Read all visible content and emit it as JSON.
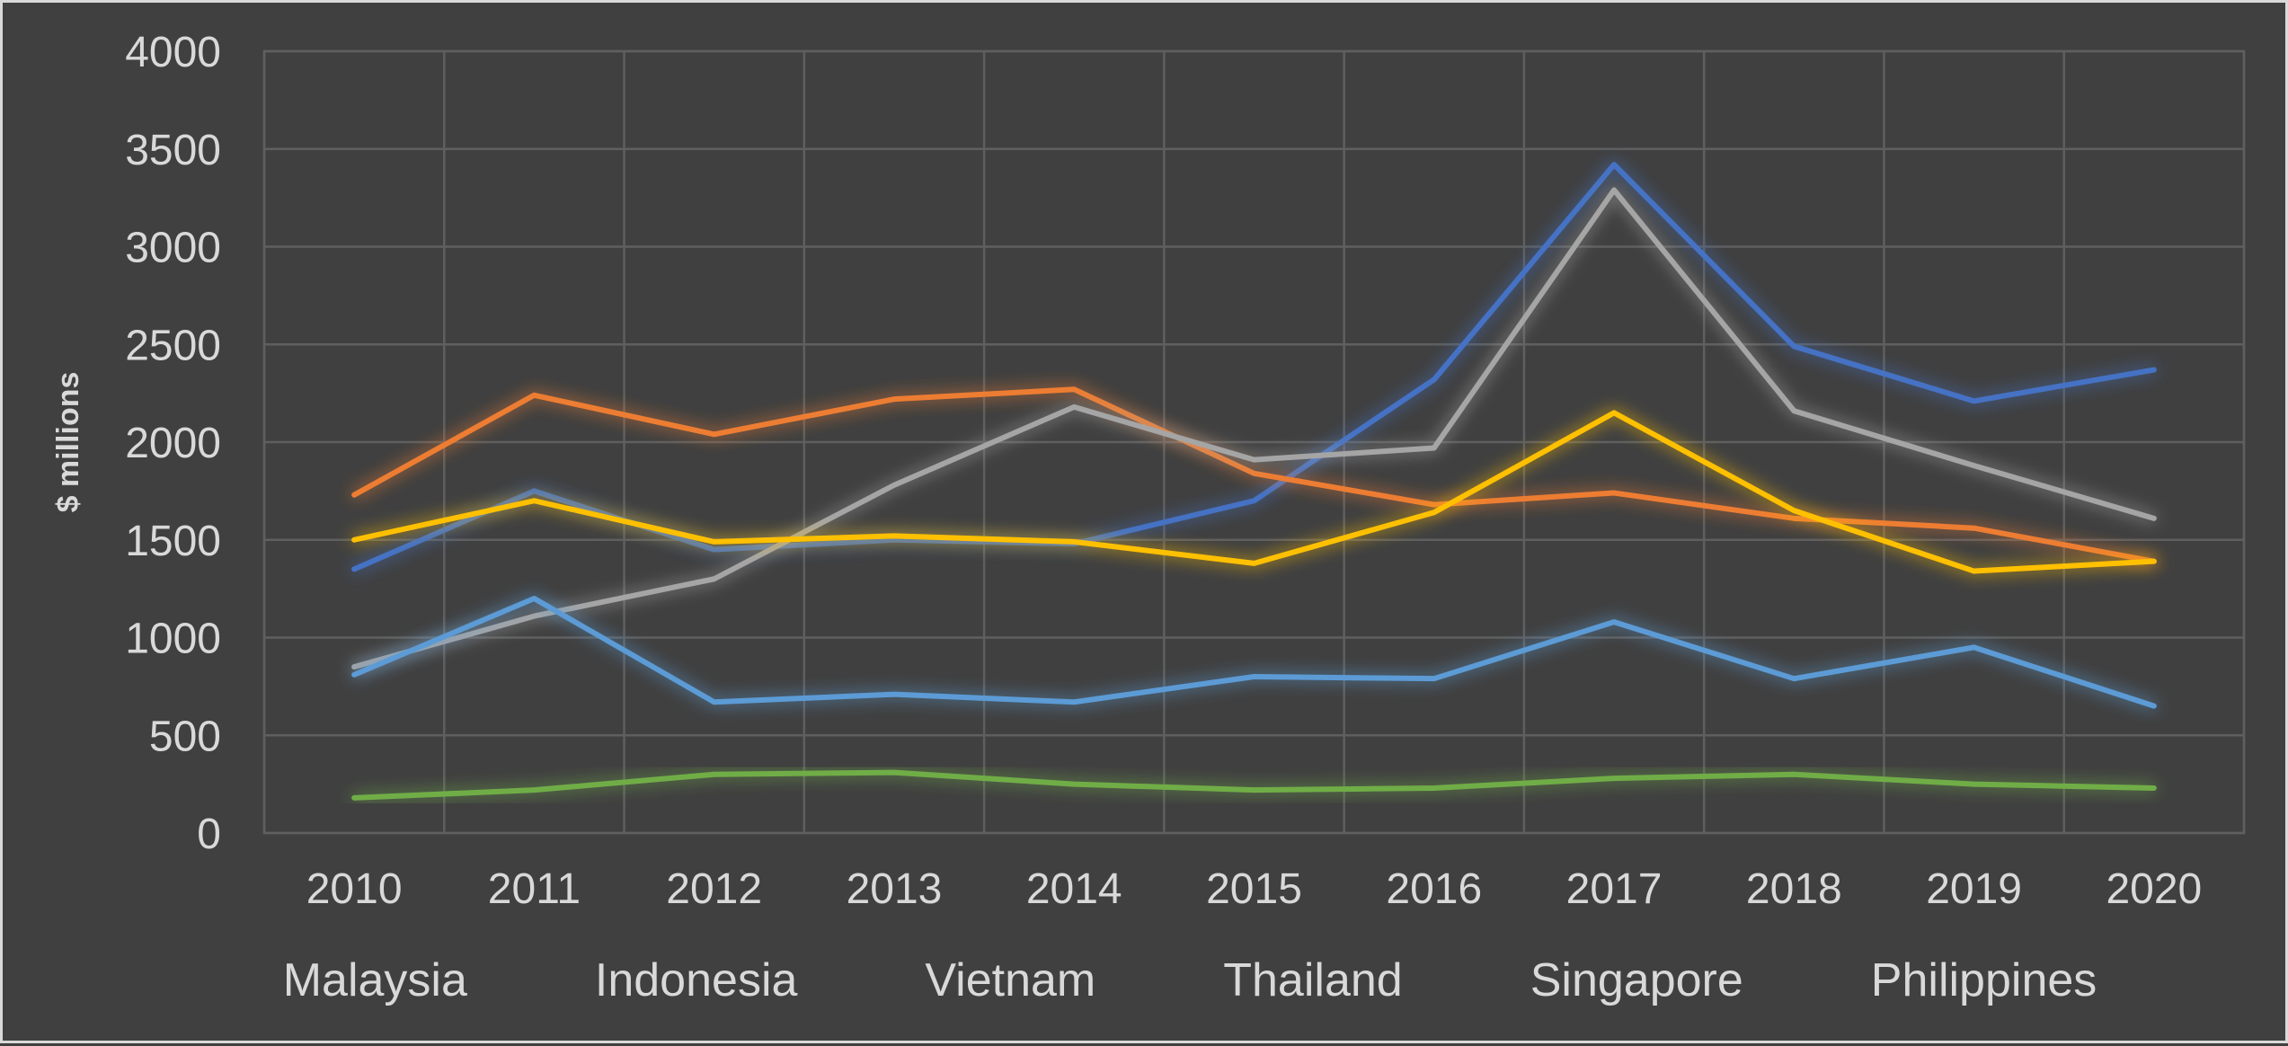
{
  "chart_data": {
    "type": "line",
    "title": "",
    "xlabel": "",
    "ylabel": "$ millions",
    "ylim": [
      0,
      4000
    ],
    "yticks": [
      0,
      500,
      1000,
      1500,
      2000,
      2500,
      3000,
      3500,
      4000
    ],
    "x": [
      "2010",
      "2011",
      "2012",
      "2013",
      "2014",
      "2015",
      "2016",
      "2017",
      "2018",
      "2019",
      "2020"
    ],
    "grid": true,
    "legend_position": "bottom",
    "series": [
      {
        "name": "Malaysia",
        "color": "#4472c4",
        "values": [
          1350,
          1750,
          1450,
          1500,
          1480,
          1700,
          2320,
          3420,
          2490,
          2210,
          2370
        ]
      },
      {
        "name": "Indonesia",
        "color": "#ed7d31",
        "values": [
          1730,
          2240,
          2040,
          2220,
          2270,
          1840,
          1680,
          1740,
          1610,
          1560,
          1390
        ]
      },
      {
        "name": "Vietnam",
        "color": "#a5a5a5",
        "values": [
          850,
          1110,
          1300,
          1780,
          2180,
          1910,
          1970,
          3290,
          2160,
          1880,
          1610
        ]
      },
      {
        "name": "Thailand",
        "color": "#ffc000",
        "values": [
          1500,
          1700,
          1490,
          1520,
          1490,
          1380,
          1640,
          2150,
          1650,
          1340,
          1390
        ]
      },
      {
        "name": "Singapore",
        "color": "#5b9bd5",
        "values": [
          810,
          1200,
          670,
          710,
          670,
          800,
          790,
          1080,
          790,
          950,
          650
        ]
      },
      {
        "name": "Philippines",
        "color": "#70ad47",
        "values": [
          180,
          220,
          300,
          310,
          250,
          220,
          230,
          280,
          300,
          250,
          230
        ]
      }
    ]
  }
}
